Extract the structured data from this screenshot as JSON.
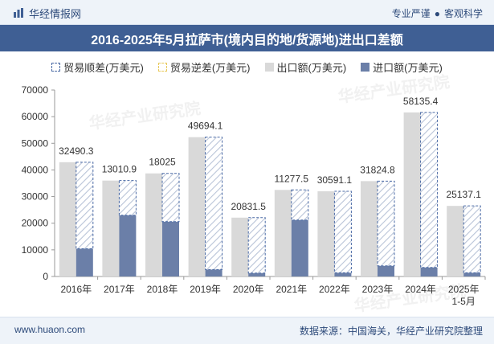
{
  "header": {
    "brand": "华经情报网",
    "tagline_left": "专业严谨",
    "tagline_right": "客观科学"
  },
  "footer": {
    "site": "www.huaon.com",
    "source": "数据来源：中国海关，华经产业研究院整理"
  },
  "watermark": "华经产业研究院",
  "colors": {
    "surplus": "#4a6aa5",
    "deficit": "#e8c95a",
    "export": "#d9d9d9",
    "import": "#6b7fa8"
  },
  "chart_data": {
    "type": "bar",
    "title": "2016-2025年5月拉萨市(境内目的地/货源地)进出口差额",
    "categories": [
      "2016年",
      "2017年",
      "2018年",
      "2019年",
      "2020年",
      "2021年",
      "2022年",
      "2023年",
      "2024年",
      "2025年\n1-5月"
    ],
    "legend": [
      "贸易顺差(万美元)",
      "贸易逆差(万美元)",
      "出口额(万美元)",
      "进口额(万美元)"
    ],
    "series": [
      {
        "name": "出口额(万美元)",
        "values": [
          42900,
          36000,
          38700,
          52300,
          22100,
          32500,
          32000,
          35800,
          61600,
          26500
        ]
      },
      {
        "name": "进口额(万美元)",
        "values": [
          10400,
          23000,
          20600,
          2600,
          1300,
          21200,
          1400,
          4000,
          3400,
          1400
        ]
      },
      {
        "name": "贸易顺差(万美元)",
        "values": [
          32490.3,
          13010.9,
          18025,
          49694.1,
          20831.5,
          11277.5,
          30591.1,
          31824.8,
          58135.4,
          25137.1
        ]
      }
    ],
    "data_labels": [
      "32490.3",
      "13010.9",
      "18025",
      "49694.1",
      "20831.5",
      "11277.5",
      "30591.1",
      "31824.8",
      "58135.4",
      "25137.1"
    ],
    "ylim": [
      0,
      70000
    ],
    "yticks": [
      0,
      10000,
      20000,
      30000,
      40000,
      50000,
      60000,
      70000
    ],
    "xlabel": "",
    "ylabel": ""
  }
}
